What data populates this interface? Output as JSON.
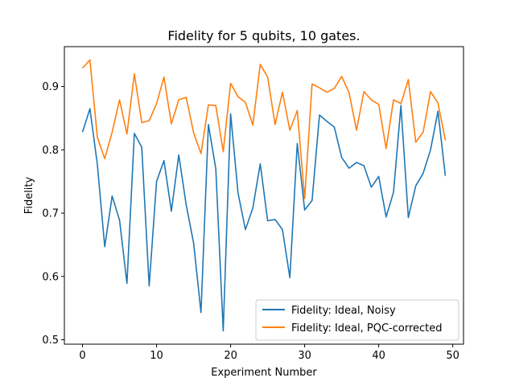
{
  "chart_data": {
    "type": "line",
    "title": "Fidelity for 5 qubits, 10 gates.",
    "xlabel": "Experiment Number",
    "ylabel": "Fidelity",
    "xlim": [
      -2.45,
      51.45
    ],
    "ylim": [
      0.493,
      0.963
    ],
    "xticks": [
      0,
      10,
      20,
      30,
      40,
      50
    ],
    "xtick_labels": [
      "0",
      "10",
      "20",
      "30",
      "40",
      "50"
    ],
    "yticks": [
      0.5,
      0.6,
      0.7,
      0.8,
      0.9
    ],
    "ytick_labels": [
      "0.5",
      "0.6",
      "0.7",
      "0.8",
      "0.9"
    ],
    "grid": false,
    "legend_position": "lower-right",
    "x": [
      0,
      1,
      2,
      3,
      4,
      5,
      6,
      7,
      8,
      9,
      10,
      11,
      12,
      13,
      14,
      15,
      16,
      17,
      18,
      19,
      20,
      21,
      22,
      23,
      24,
      25,
      26,
      27,
      28,
      29,
      30,
      31,
      32,
      33,
      34,
      35,
      36,
      37,
      38,
      39,
      40,
      41,
      42,
      43,
      44,
      45,
      46,
      47,
      48,
      49
    ],
    "series": [
      {
        "name": "Fidelity: Ideal, Noisy",
        "color": "#1f77b4",
        "values": [
          0.828,
          0.865,
          0.777,
          0.647,
          0.727,
          0.689,
          0.589,
          0.826,
          0.804,
          0.585,
          0.75,
          0.783,
          0.703,
          0.792,
          0.713,
          0.653,
          0.543,
          0.84,
          0.77,
          0.514,
          0.857,
          0.732,
          0.674,
          0.708,
          0.778,
          0.688,
          0.69,
          0.674,
          0.598,
          0.81,
          0.705,
          0.72,
          0.855,
          0.845,
          0.836,
          0.788,
          0.771,
          0.78,
          0.775,
          0.741,
          0.758,
          0.694,
          0.733,
          0.87,
          0.693,
          0.743,
          0.763,
          0.8,
          0.861,
          0.759
        ]
      },
      {
        "name": "Fidelity: Ideal, PQC-corrected",
        "color": "#ff7f0e",
        "values": [
          0.929,
          0.942,
          0.82,
          0.786,
          0.828,
          0.879,
          0.825,
          0.92,
          0.843,
          0.846,
          0.873,
          0.915,
          0.841,
          0.879,
          0.883,
          0.827,
          0.794,
          0.871,
          0.87,
          0.797,
          0.905,
          0.884,
          0.875,
          0.839,
          0.935,
          0.915,
          0.84,
          0.891,
          0.831,
          0.862,
          0.723,
          0.904,
          0.898,
          0.891,
          0.897,
          0.916,
          0.89,
          0.831,
          0.892,
          0.879,
          0.872,
          0.802,
          0.879,
          0.873,
          0.911,
          0.812,
          0.828,
          0.892,
          0.874,
          0.815
        ]
      }
    ]
  }
}
